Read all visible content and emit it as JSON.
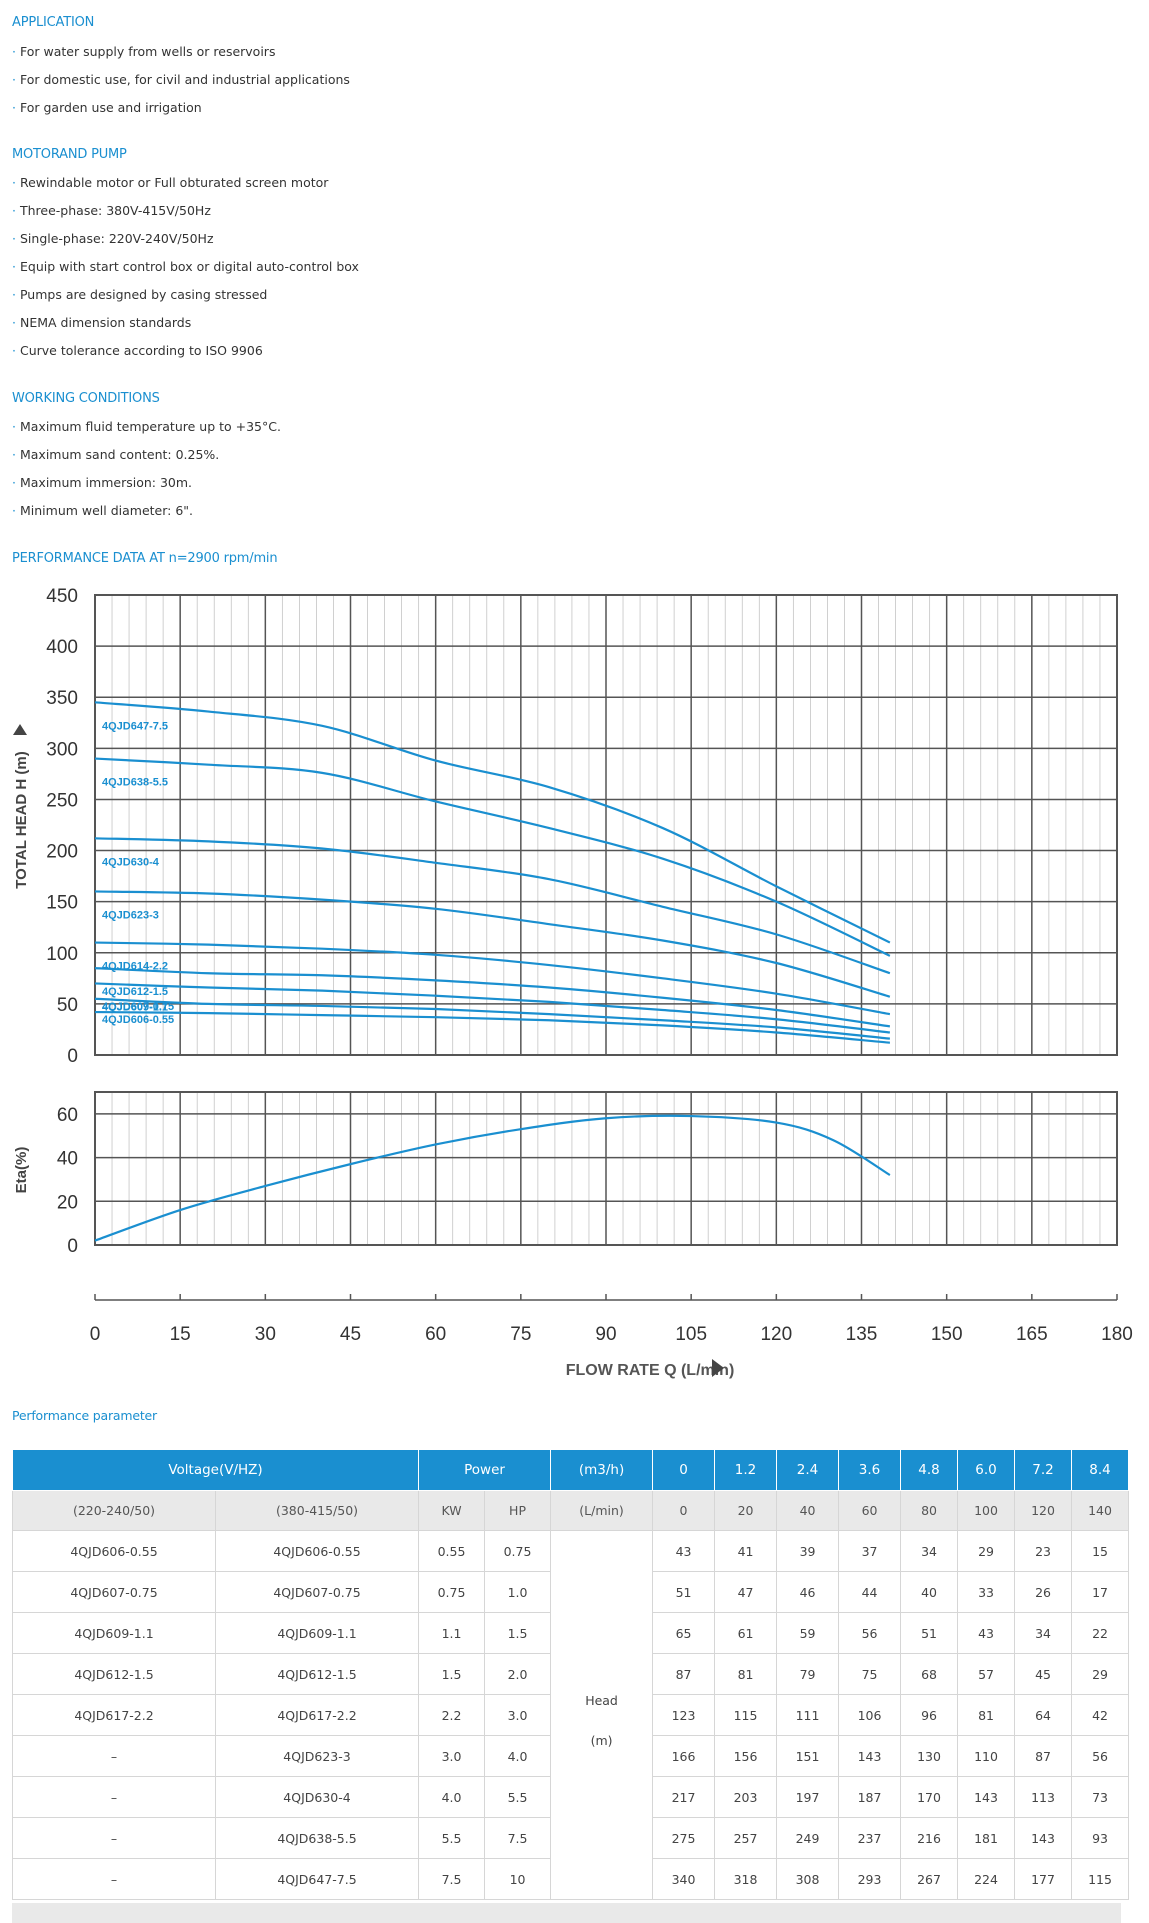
{
  "sections": [
    {
      "title": "APPLICATION",
      "items": [
        "For water supply from wells or reservoirs",
        "For domestic use, for civil and industrial applications",
        "For garden use and irrigation"
      ]
    },
    {
      "title": "MOTORAND PUMP",
      "items": [
        "Rewindable motor or Full obturated screen motor",
        "Three-phase: 380V-415V/50Hz",
        "Single-phase: 220V-240V/50Hz",
        "Equip with start control box or digital auto-control box",
        "Pumps are designed by casing stressed",
        "NEMA dimension standards",
        "Curve tolerance according to ISO 9906"
      ]
    },
    {
      "title": "WORKING CONDITIONS",
      "items": [
        "Maximum fluid temperature up to +35°C.",
        "Maximum sand content: 0.25%.",
        "Maximum immersion: 30m.",
        "Minimum well diameter: 6\"."
      ]
    }
  ],
  "performance_title": "PERFORMANCE DATA AT n=2900 rpm/min",
  "bullet_char": "·",
  "colors": {
    "accent": "#1a8fd0",
    "curve": "#1a8fd0",
    "grid": "#555555"
  },
  "chart_data": [
    {
      "type": "line",
      "title": "",
      "ylabel": "TOTAL HEAD H (m)",
      "xlabel": "FLOW RATE Q (L/min)",
      "xlim": [
        0,
        180
      ],
      "ylim": [
        0,
        450
      ],
      "x_ticks": [
        0,
        15,
        30,
        45,
        60,
        75,
        90,
        105,
        120,
        135,
        150,
        165,
        180
      ],
      "y_ticks": [
        0,
        50,
        100,
        150,
        200,
        250,
        300,
        350,
        400,
        450
      ],
      "grid": true,
      "x": [
        0,
        20,
        40,
        60,
        80,
        100,
        120,
        140
      ],
      "series": [
        {
          "name": "4QJD647-7.5",
          "values": [
            345,
            336,
            322,
            288,
            262,
            222,
            165,
            110
          ]
        },
        {
          "name": "4QJD638-5.5",
          "values": [
            290,
            284,
            276,
            248,
            222,
            192,
            150,
            97
          ]
        },
        {
          "name": "4QJD630-4",
          "values": [
            212,
            209,
            202,
            188,
            172,
            145,
            118,
            80
          ]
        },
        {
          "name": "4QJD623-3",
          "values": [
            160,
            158,
            152,
            143,
            128,
            112,
            90,
            57
          ]
        },
        {
          "name": "4QJD614-2.2",
          "values": [
            110,
            108,
            104,
            98,
            88,
            75,
            60,
            40
          ]
        },
        {
          "name": "4QJD612-1.5",
          "values": [
            85,
            80,
            78,
            73,
            66,
            56,
            44,
            28
          ]
        },
        {
          "name": "4QJD609-1.1",
          "values": [
            70,
            66,
            63,
            58,
            52,
            44,
            35,
            22
          ]
        },
        {
          "name": "4QJD607-0.75",
          "values": [
            55,
            50,
            48,
            45,
            40,
            34,
            27,
            16
          ]
        },
        {
          "name": "4QJD606-0.55",
          "values": [
            42,
            41,
            39,
            37,
            34,
            29,
            22,
            12
          ]
        }
      ]
    },
    {
      "type": "line",
      "title": "",
      "ylabel": "Eta(%)",
      "xlabel": "FLOW RATE Q (L/min)",
      "xlim": [
        0,
        180
      ],
      "ylim": [
        0,
        70
      ],
      "y_ticks": [
        0,
        20,
        40,
        60
      ],
      "grid": true,
      "x": [
        0,
        15,
        30,
        45,
        60,
        75,
        90,
        105,
        120,
        130,
        140
      ],
      "series": [
        {
          "values": [
            2,
            16,
            27,
            37,
            46,
            53,
            58,
            59,
            56,
            48,
            32
          ]
        }
      ]
    }
  ],
  "table_title": "Performance parameter",
  "table": {
    "header1": {
      "voltage": "Voltage(V/HZ)",
      "power": "Power",
      "unit": "(m3/h)",
      "flows": [
        "0",
        "1.2",
        "2.4",
        "3.6",
        "4.8",
        "6.0",
        "7.2",
        "8.4"
      ]
    },
    "header2": {
      "v1": "(220-240/50)",
      "v2": "(380-415/50)",
      "kw": "KW",
      "hp": "HP",
      "unit": "(L/min)",
      "flows": [
        "0",
        "20",
        "40",
        "60",
        "80",
        "100",
        "120",
        "140"
      ]
    },
    "head_label_1": "Head",
    "head_label_2": "(m)",
    "rows": [
      {
        "single": "4QJD606-0.55",
        "three": "4QJD606-0.55",
        "kw": "0.55",
        "hp": "0.75",
        "heads": [
          "43",
          "41",
          "39",
          "37",
          "34",
          "29",
          "23",
          "15"
        ]
      },
      {
        "single": "4QJD607-0.75",
        "three": "4QJD607-0.75",
        "kw": "0.75",
        "hp": "1.0",
        "heads": [
          "51",
          "47",
          "46",
          "44",
          "40",
          "33",
          "26",
          "17"
        ]
      },
      {
        "single": "4QJD609-1.1",
        "three": "4QJD609-1.1",
        "kw": "1.1",
        "hp": "1.5",
        "heads": [
          "65",
          "61",
          "59",
          "56",
          "51",
          "43",
          "34",
          "22"
        ]
      },
      {
        "single": "4QJD612-1.5",
        "three": "4QJD612-1.5",
        "kw": "1.5",
        "hp": "2.0",
        "heads": [
          "87",
          "81",
          "79",
          "75",
          "68",
          "57",
          "45",
          "29"
        ]
      },
      {
        "single": "4QJD617-2.2",
        "three": "4QJD617-2.2",
        "kw": "2.2",
        "hp": "3.0",
        "heads": [
          "123",
          "115",
          "111",
          "106",
          "96",
          "81",
          "64",
          "42"
        ]
      },
      {
        "single": "–",
        "three": "4QJD623-3",
        "kw": "3.0",
        "hp": "4.0",
        "heads": [
          "166",
          "156",
          "151",
          "143",
          "130",
          "110",
          "87",
          "56"
        ]
      },
      {
        "single": "–",
        "three": "4QJD630-4",
        "kw": "4.0",
        "hp": "5.5",
        "heads": [
          "217",
          "203",
          "197",
          "187",
          "170",
          "143",
          "113",
          "73"
        ]
      },
      {
        "single": "–",
        "three": "4QJD638-5.5",
        "kw": "5.5",
        "hp": "7.5",
        "heads": [
          "275",
          "257",
          "249",
          "237",
          "216",
          "181",
          "143",
          "93"
        ]
      },
      {
        "single": "–",
        "three": "4QJD647-7.5",
        "kw": "7.5",
        "hp": "10",
        "heads": [
          "340",
          "318",
          "308",
          "293",
          "267",
          "224",
          "177",
          "115"
        ]
      }
    ]
  }
}
